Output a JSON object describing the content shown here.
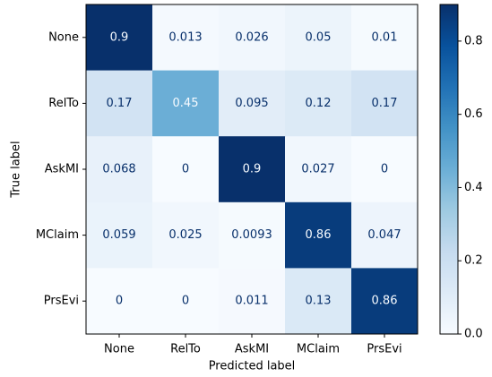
{
  "chart_data": {
    "type": "heatmap",
    "xlabel": "Predicted label",
    "ylabel": "True label",
    "x_categories": [
      "None",
      "RelTo",
      "AskMI",
      "MClaim",
      "PrsEvi"
    ],
    "y_categories": [
      "None",
      "RelTo",
      "AskMI",
      "MClaim",
      "PrsEvi"
    ],
    "values": [
      [
        0.9,
        0.013,
        0.026,
        0.05,
        0.01
      ],
      [
        0.17,
        0.45,
        0.095,
        0.12,
        0.17
      ],
      [
        0.068,
        0,
        0.9,
        0.027,
        0
      ],
      [
        0.059,
        0.025,
        0.0093,
        0.86,
        0.047
      ],
      [
        0,
        0,
        0.011,
        0.13,
        0.86
      ]
    ],
    "colormap": "Blues",
    "zlim": [
      0,
      0.9
    ],
    "zticks": [
      {
        "value": 0,
        "label": "0.0"
      },
      0.2,
      0.4,
      0.6,
      0.8
    ]
  }
}
